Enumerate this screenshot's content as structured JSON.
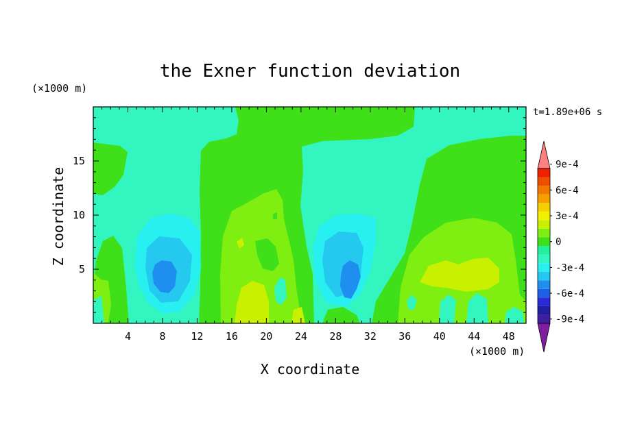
{
  "chart_data": {
    "type": "heatmap",
    "title": "the Exner function deviation",
    "xlabel": "X coordinate",
    "ylabel": "Z coordinate",
    "x_unit": "(×1000 m)",
    "z_unit": "(×1000 m)",
    "time_label": "t=1.89e+06 s",
    "xlim": [
      0,
      50
    ],
    "ylim": [
      0,
      20
    ],
    "x_ticks": [
      4,
      8,
      12,
      16,
      20,
      24,
      28,
      32,
      36,
      40,
      44,
      48
    ],
    "y_ticks": [
      5,
      10,
      15
    ],
    "colorbar": {
      "tick_values": [
        0.0009,
        0.0006,
        0.0003,
        0,
        -0.0003,
        -0.0006,
        -0.0009
      ],
      "tick_labels": [
        "9e-4",
        "6e-4",
        "3e-4",
        "0",
        "-3e-4",
        "-6e-4",
        "-9e-4"
      ],
      "level_step": 0.0001,
      "levels_colors": [
        "#7f1fa0",
        "#3f1f9f",
        "#1f1f9f",
        "#2a2ad8",
        "#1f5fe6",
        "#1f8fef",
        "#25c8ef",
        "#29f0f0",
        "#33f5c0",
        "#22f09a",
        "#3fe01a",
        "#7fef12",
        "#c8f000",
        "#f0f000",
        "#f6cf00",
        "#f6a000",
        "#f27800",
        "#ef4f00",
        "#ef1f00",
        "#ff8080"
      ]
    },
    "color_key": {
      "neg3": "#1f8fef",
      "neg2": "#29f0f0",
      "neg1": "#33f5c0",
      "zero": "#22f09a",
      "pos1": "#3fe01a",
      "pos2": "#7fef12",
      "pos3": "#c8f000"
    }
  }
}
